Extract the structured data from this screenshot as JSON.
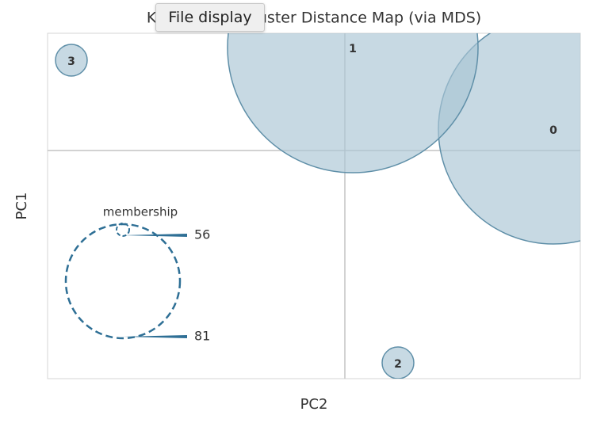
{
  "tooltip": "File display",
  "chart_data": {
    "type": "bubble",
    "title": "KMeans Intercluster Distance Map (via MDS)",
    "xlabel": "PC2",
    "ylabel": "PC1",
    "categories": [
      "0",
      "1",
      "2",
      "3"
    ],
    "x": [
      2.63,
      0.1,
      0.67,
      -3.45
    ],
    "y": [
      0.27,
      1.3,
      -2.68,
      1.14
    ],
    "sizes": [
      1.45,
      1.58,
      0.2,
      0.2
    ],
    "xlim": [
      -3.75,
      2.97
    ],
    "ylim": [
      -2.88,
      1.48
    ],
    "color": "#a9c4d4",
    "size_legend": {
      "title": "membership",
      "values": [
        56,
        81
      ]
    }
  }
}
